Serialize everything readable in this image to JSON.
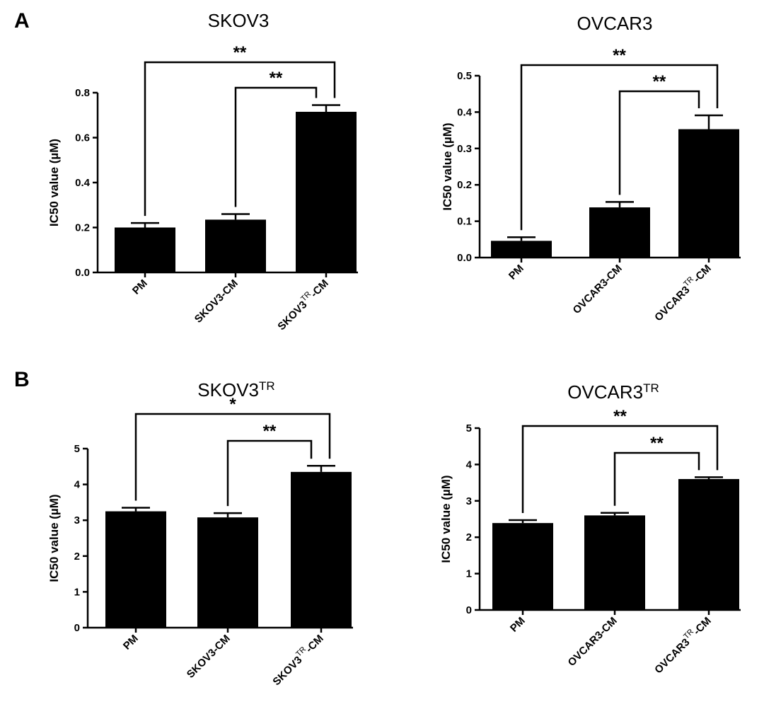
{
  "panels": [
    {
      "letter": "A"
    },
    {
      "letter": "B"
    }
  ],
  "chart_data": [
    {
      "type": "bar",
      "title": "SKOV3",
      "title_sup": "",
      "ylabel": "IC50 value (µM)",
      "xlabel": "",
      "ylim": [
        0,
        0.8
      ],
      "yticks": [
        "0.0",
        "0.2",
        "0.4",
        "0.6",
        "0.8"
      ],
      "categories": [
        {
          "base": "PM",
          "sup": "",
          "suffix": ""
        },
        {
          "base": "SKOV3-CM",
          "sup": "",
          "suffix": ""
        },
        {
          "base": "SKOV3",
          "sup": "TR",
          "suffix": "-CM"
        }
      ],
      "values": [
        0.2,
        0.235,
        0.715
      ],
      "errors": [
        0.02,
        0.025,
        0.03
      ],
      "significance": [
        {
          "from": 0,
          "to": 2,
          "label": "**"
        },
        {
          "from": 1,
          "to": 2,
          "label": "**"
        }
      ]
    },
    {
      "type": "bar",
      "title": "OVCAR3",
      "title_sup": "",
      "ylabel": "IC50 value (µM)",
      "xlabel": "",
      "ylim": [
        0,
        0.5
      ],
      "yticks": [
        "0.0",
        "0.1",
        "0.2",
        "0.3",
        "0.4",
        "0.5"
      ],
      "categories": [
        {
          "base": "PM",
          "sup": "",
          "suffix": ""
        },
        {
          "base": "OVCAR3-CM",
          "sup": "",
          "suffix": ""
        },
        {
          "base": "OVCAR3",
          "sup": "TR",
          "suffix": "-CM"
        }
      ],
      "values": [
        0.046,
        0.138,
        0.353
      ],
      "errors": [
        0.01,
        0.015,
        0.038
      ],
      "significance": [
        {
          "from": 0,
          "to": 2,
          "label": "**"
        },
        {
          "from": 1,
          "to": 2,
          "label": "**"
        }
      ]
    },
    {
      "type": "bar",
      "title": "SKOV3",
      "title_sup": "TR",
      "ylabel": "IC50 value (µM)",
      "xlabel": "",
      "ylim": [
        0,
        5
      ],
      "yticks": [
        "0",
        "1",
        "2",
        "3",
        "4",
        "5"
      ],
      "categories": [
        {
          "base": "PM",
          "sup": "",
          "suffix": ""
        },
        {
          "base": "SKOV3-CM",
          "sup": "",
          "suffix": ""
        },
        {
          "base": "SKOV3",
          "sup": "TR",
          "suffix": "-CM"
        }
      ],
      "values": [
        3.25,
        3.08,
        4.35
      ],
      "errors": [
        0.1,
        0.12,
        0.17
      ],
      "significance": [
        {
          "from": 0,
          "to": 2,
          "label": "*"
        },
        {
          "from": 1,
          "to": 2,
          "label": "**"
        }
      ]
    },
    {
      "type": "bar",
      "title": "OVCAR3",
      "title_sup": "TR",
      "ylabel": "IC50 value (µM)",
      "xlabel": "",
      "ylim": [
        0,
        5
      ],
      "yticks": [
        "0",
        "1",
        "2",
        "3",
        "4",
        "5"
      ],
      "categories": [
        {
          "base": "PM",
          "sup": "",
          "suffix": ""
        },
        {
          "base": "OVCAR3-CM",
          "sup": "",
          "suffix": ""
        },
        {
          "base": "OVCAR3",
          "sup": "TR",
          "suffix": "-CM"
        }
      ],
      "values": [
        2.39,
        2.6,
        3.6
      ],
      "errors": [
        0.08,
        0.07,
        0.05
      ],
      "significance": [
        {
          "from": 0,
          "to": 2,
          "label": "**"
        },
        {
          "from": 1,
          "to": 2,
          "label": "**"
        }
      ]
    }
  ]
}
